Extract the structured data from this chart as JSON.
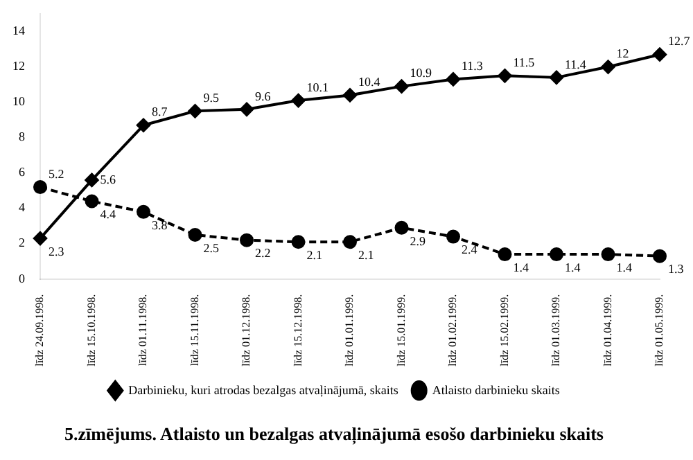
{
  "chart_data": {
    "type": "line",
    "title": "5.zīmējums. Atlaisto un bezalgas atvaļinājumā esošo darbinieku skaits",
    "categories": [
      "līdz 24.09.1998.",
      "līdz 15.10.1998.",
      "līdz 01.11.1998.",
      "līdz 15.11.1998.",
      "līdz 01.12.1998.",
      "līdz 15.12.1998.",
      "līdz 01.01.1999.",
      "līdz 15.01.1999.",
      "līdz 01.02.1999.",
      "līdz 15.02.1999.",
      "līdz 01.03.1999.",
      "līdz 01.04.1999.",
      "līdz 01.05.1999."
    ],
    "series": [
      {
        "name": "Darbinieku, kuri atrodas bezalgas atvaļinājumā, skaits",
        "color": "#000000",
        "marker": "diamond",
        "line_style": "solid",
        "values": [
          2.3,
          5.6,
          8.7,
          9.5,
          9.6,
          10.1,
          10.4,
          10.9,
          11.3,
          11.5,
          11.4,
          12,
          12.7
        ]
      },
      {
        "name": "Atlaisto darbinieku skaits",
        "color": "#000000",
        "marker": "circle",
        "line_style": "dashed",
        "values": [
          5.2,
          4.4,
          3.8,
          2.5,
          2.2,
          2.1,
          2.1,
          2.9,
          2.4,
          1.4,
          1.4,
          1.4,
          1.3
        ]
      }
    ],
    "ylim": [
      0,
      15
    ],
    "yticks": [
      0,
      2,
      4,
      6,
      8,
      10,
      12,
      14
    ],
    "grid": false,
    "legend": "bottom",
    "data_labels": true
  }
}
